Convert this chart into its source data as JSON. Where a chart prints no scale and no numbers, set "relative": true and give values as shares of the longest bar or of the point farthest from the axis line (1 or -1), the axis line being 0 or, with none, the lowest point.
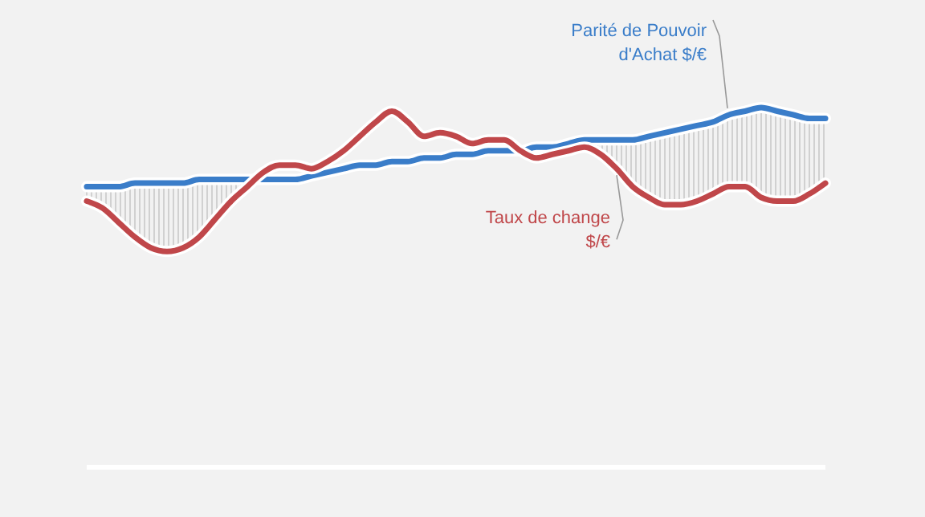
{
  "chart_data": {
    "type": "line",
    "relative": true,
    "categories": [
      null,
      null,
      null,
      null,
      null,
      null,
      null,
      null,
      null,
      null,
      null,
      null,
      null,
      null,
      null,
      null,
      null,
      null,
      null,
      null,
      null,
      null,
      null,
      null,
      null,
      null,
      null,
      null,
      null,
      null,
      null,
      null,
      null,
      null,
      null,
      null,
      null,
      null,
      null,
      null,
      null,
      null,
      null,
      null,
      null,
      null,
      null
    ],
    "series": [
      {
        "name": "Parité de Pouvoir d'Achat $/€",
        "color": "#3a7dc9",
        "values": [
          0.78,
          0.78,
          0.78,
          0.79,
          0.79,
          0.79,
          0.79,
          0.8,
          0.8,
          0.8,
          0.8,
          0.8,
          0.8,
          0.8,
          0.81,
          0.82,
          0.83,
          0.84,
          0.84,
          0.85,
          0.85,
          0.86,
          0.86,
          0.87,
          0.87,
          0.88,
          0.88,
          0.88,
          0.89,
          0.89,
          0.9,
          0.91,
          0.91,
          0.91,
          0.91,
          0.92,
          0.93,
          0.94,
          0.95,
          0.96,
          0.98,
          0.99,
          1.0,
          0.99,
          0.98,
          0.97,
          0.97
        ]
      },
      {
        "name": "Taux de change $/€",
        "color": "#c0474a",
        "values": [
          0.74,
          0.72,
          0.68,
          0.64,
          0.61,
          0.6,
          0.61,
          0.64,
          0.69,
          0.74,
          0.78,
          0.82,
          0.84,
          0.84,
          0.83,
          0.85,
          0.88,
          0.92,
          0.96,
          0.99,
          0.96,
          0.92,
          0.93,
          0.92,
          0.9,
          0.91,
          0.91,
          0.88,
          0.86,
          0.87,
          0.88,
          0.89,
          0.87,
          0.83,
          0.78,
          0.75,
          0.73,
          0.73,
          0.74,
          0.76,
          0.78,
          0.78,
          0.75,
          0.74,
          0.74,
          0.76,
          0.79
        ]
      }
    ]
  }
}
